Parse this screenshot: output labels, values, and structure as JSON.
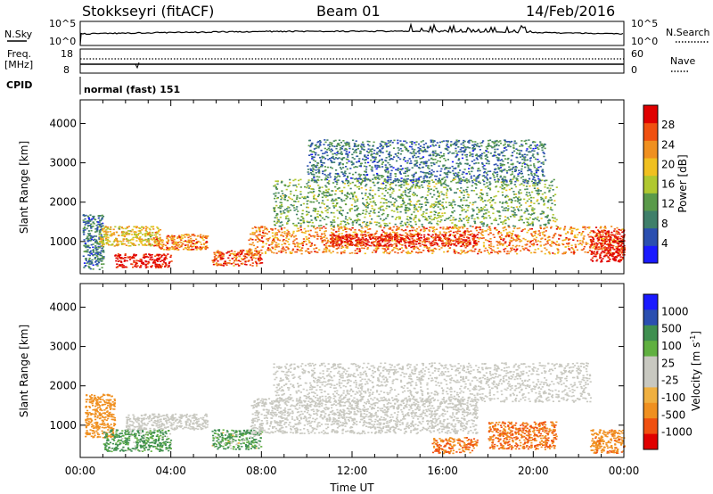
{
  "header": {
    "station": "Stokkseyri (fitACF)",
    "beam": "Beam 01",
    "date": "14/Feb/2016"
  },
  "status_panel": {
    "nsky_label": "N.Sky",
    "nsky_ticks": [
      "10^5",
      "10^0"
    ],
    "nsearch_label": "N.Search",
    "nsearch_ticks": [
      "10^5",
      "10^0"
    ],
    "freq_label": "Freq.",
    "freq_unit": "[MHz]",
    "freq_ticks": [
      "18",
      "8"
    ],
    "nave_label": "Nave",
    "nave_ticks": [
      "60",
      "0"
    ],
    "cpid_label": "CPID",
    "cpid_value": "normal (fast) 151"
  },
  "x_axis": {
    "label": "Time UT",
    "ticks": [
      "00:00",
      "04:00",
      "08:00",
      "12:00",
      "16:00",
      "20:00",
      "00:00"
    ]
  },
  "colors": {
    "power_scale": [
      "#1a1aff",
      "#2b4fb0",
      "#3f7f6a",
      "#5a9a4a",
      "#b0c830",
      "#f0c020",
      "#f09020",
      "#f05010",
      "#e00000"
    ],
    "velocity_scale": [
      "#e00000",
      "#f05010",
      "#f09020",
      "#f0b040",
      "#c8c8c0",
      "#c8c8c0",
      "#60b040",
      "#3f8f50",
      "#2b4fb0",
      "#1a1aff"
    ]
  },
  "chart_data": [
    {
      "type": "heatmap",
      "title": "",
      "xlabel": "",
      "ylabel": "Slant Range [km]",
      "xlim": [
        0,
        24
      ],
      "ylim": [
        180,
        4600
      ],
      "y_ticks": [
        "1000",
        "2000",
        "3000",
        "4000"
      ],
      "colorbar_label": "Power [dB]",
      "colorbar_ticks": [
        "4",
        "8",
        "12",
        "16",
        "20",
        "24",
        "28"
      ],
      "regions": [
        {
          "t0": 0.1,
          "t1": 1.0,
          "r0": 300,
          "r1": 1700,
          "value": 8
        },
        {
          "t0": 0.8,
          "t1": 3.5,
          "r0": 900,
          "r1": 1400,
          "value": 18
        },
        {
          "t0": 1.5,
          "t1": 4.0,
          "r0": 350,
          "r1": 700,
          "value": 28
        },
        {
          "t0": 3.2,
          "t1": 5.6,
          "r0": 800,
          "r1": 1200,
          "value": 22
        },
        {
          "t0": 5.8,
          "t1": 8.0,
          "r0": 400,
          "r1": 800,
          "value": 24
        },
        {
          "t0": 7.4,
          "t1": 24.0,
          "r0": 700,
          "r1": 1400,
          "value": 22
        },
        {
          "t0": 11.0,
          "t1": 17.5,
          "r0": 900,
          "r1": 1200,
          "value": 27
        },
        {
          "t0": 8.5,
          "t1": 21.0,
          "r0": 1400,
          "r1": 2600,
          "value": 12
        },
        {
          "t0": 10.0,
          "t1": 20.5,
          "r0": 2500,
          "r1": 3600,
          "value": 8
        },
        {
          "t0": 22.5,
          "t1": 24.0,
          "r0": 500,
          "r1": 1300,
          "value": 28
        }
      ]
    },
    {
      "type": "heatmap",
      "title": "",
      "xlabel": "Time UT",
      "ylabel": "Slant Range [km]",
      "xlim": [
        0,
        24
      ],
      "ylim": [
        180,
        4600
      ],
      "y_ticks": [
        "1000",
        "2000",
        "3000",
        "4000"
      ],
      "colorbar_label": "Velocity [m s^-1]",
      "colorbar_ticks": [
        "1000",
        "500",
        "100",
        "25",
        "-25",
        "-100",
        "-500",
        "-1000"
      ],
      "regions": [
        {
          "t0": 0.2,
          "t1": 1.5,
          "r0": 700,
          "r1": 1800,
          "value": -300
        },
        {
          "t0": 1.0,
          "t1": 4.0,
          "r0": 350,
          "r1": 900,
          "value": 150
        },
        {
          "t0": 2.0,
          "t1": 5.6,
          "r0": 900,
          "r1": 1300,
          "value": 0
        },
        {
          "t0": 5.8,
          "t1": 8.0,
          "r0": 400,
          "r1": 900,
          "value": 120
        },
        {
          "t0": 7.5,
          "t1": 17.5,
          "r0": 800,
          "r1": 1700,
          "value": 0
        },
        {
          "t0": 8.5,
          "t1": 22.5,
          "r0": 1600,
          "r1": 2600,
          "value": 0
        },
        {
          "t0": 15.5,
          "t1": 17.5,
          "r0": 300,
          "r1": 700,
          "value": -500
        },
        {
          "t0": 18.0,
          "t1": 21.0,
          "r0": 400,
          "r1": 1100,
          "value": -500
        },
        {
          "t0": 22.5,
          "t1": 24.0,
          "r0": 300,
          "r1": 900,
          "value": -400
        }
      ]
    }
  ]
}
